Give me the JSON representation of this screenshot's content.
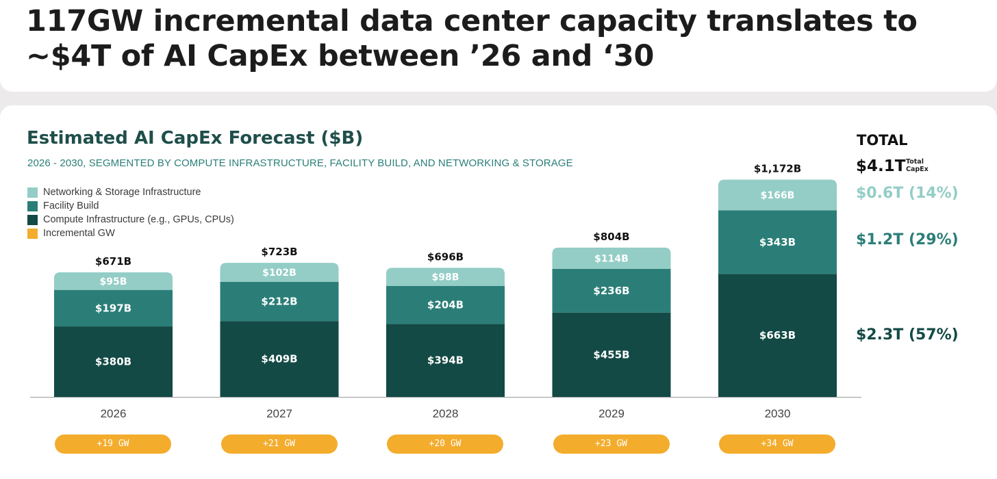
{
  "header": {
    "headline": "117GW incremental data center capacity translates to ~$4T of AI CapEx between ’26 and ‘30"
  },
  "colors": {
    "networking": "#93cdc6",
    "facility": "#2b7e78",
    "compute": "#134a45",
    "gw": "#f3ac2c",
    "title": "#1f4f4a",
    "subtitle": "#2a7f79"
  },
  "totals": {
    "heading": "TOTAL",
    "value": "$4.1T",
    "caption": "Total CapEx",
    "networking": "$0.6T (14%)",
    "facility": "$1.2T (29%)",
    "compute": "$2.3T (57%)"
  },
  "chart_data": {
    "type": "bar",
    "stacked": true,
    "title": "Estimated AI CapEx Forecast ($B)",
    "subtitle": "2026 - 2030, SEGMENTED BY COMPUTE INFRASTRUCTURE, FACILITY BUILD, AND NETWORKING & STORAGE",
    "xlabel": "",
    "ylabel": "",
    "ylim": [
      0,
      1200
    ],
    "grid": false,
    "legend_position": "top-left",
    "categories": [
      "2026",
      "2027",
      "2028",
      "2029",
      "2030"
    ],
    "legend": [
      {
        "key": "networking",
        "label": "Networking & Storage Infrastructure"
      },
      {
        "key": "facility",
        "label": "Facility Build"
      },
      {
        "key": "compute",
        "label": "Compute Infrastructure (e.g., GPUs, CPUs)"
      },
      {
        "key": "gw",
        "label": "Incremental GW"
      }
    ],
    "series": [
      {
        "key": "compute",
        "name": "Compute Infrastructure (e.g., GPUs, CPUs)",
        "values": [
          380,
          409,
          394,
          455,
          663
        ],
        "labels": [
          "$380B",
          "$409B",
          "$394B",
          "$455B",
          "$663B"
        ]
      },
      {
        "key": "facility",
        "name": "Facility Build",
        "values": [
          197,
          212,
          204,
          236,
          343
        ],
        "labels": [
          "$197B",
          "$212B",
          "$204B",
          "$236B",
          "$343B"
        ]
      },
      {
        "key": "networking",
        "name": "Networking & Storage Infrastructure",
        "values": [
          95,
          102,
          98,
          114,
          166
        ],
        "labels": [
          "$95B",
          "$102B",
          "$98B",
          "$114B",
          "$166B"
        ]
      }
    ],
    "bar_totals": [
      671,
      723,
      696,
      804,
      1172
    ],
    "bar_total_labels": [
      "$671B",
      "$723B",
      "$696B",
      "$804B",
      "$1,172B"
    ],
    "incremental_gw": [
      19,
      21,
      20,
      23,
      34
    ],
    "incremental_gw_labels": [
      "+19 GW",
      "+21 GW",
      "+20 GW",
      "+23 GW",
      "+34 GW"
    ]
  }
}
